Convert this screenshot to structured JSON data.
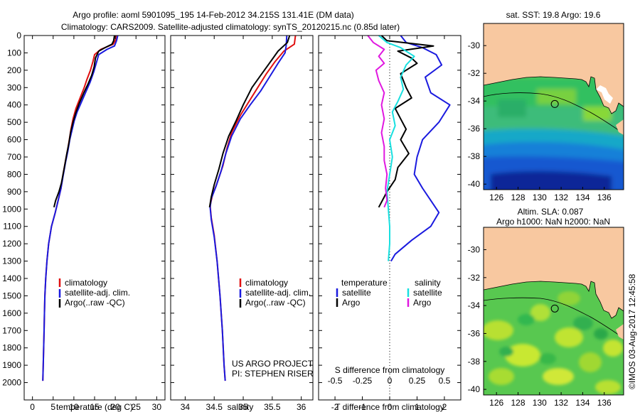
{
  "header": {
    "line1": "Argo profile: aoml 5901095_195 14-Feb-2012 34.215S 131.41E (DM data)",
    "line2": "Climatology: CARS2009. Satellite-adjusted climatology: synTS_20120215.nc (0.85d later)"
  },
  "credit": {
    "project": "US ARGO PROJECT",
    "pi": "PI: STEPHEN RISER",
    "stamp": "©IMOS 03-Aug-2017 12:45:58"
  },
  "colors": {
    "climatology": "#e01010",
    "satellite": "#1a1adf",
    "argo": "#000000",
    "sat_salinity": "#18e0e0",
    "argo_salinity": "#e018e0",
    "land": "#f8c8a0",
    "mask": "#ffffff"
  },
  "chart_data": [
    {
      "id": "temperature",
      "type": "line",
      "xlabel": "temperature (deg C)",
      "xlim": [
        -2,
        32
      ],
      "ylim": [
        2100,
        0
      ],
      "xticks": [
        0,
        5,
        10,
        15,
        20,
        25,
        30
      ],
      "yticks": [
        0,
        100,
        200,
        300,
        400,
        500,
        600,
        700,
        800,
        900,
        1000,
        1100,
        1200,
        1300,
        1400,
        1500,
        1600,
        1700,
        1800,
        1900,
        2000
      ],
      "legend": [
        "climatology",
        "satellite-adj. clim.",
        "Argo(..raw -QC)"
      ],
      "series": [
        {
          "name": "climatology",
          "color": "#e01010",
          "points": [
            [
              20.2,
              0
            ],
            [
              20,
              30
            ],
            [
              19.5,
              50
            ],
            [
              16.5,
              80
            ],
            [
              15,
              110
            ],
            [
              14.6,
              150
            ],
            [
              14,
              200
            ],
            [
              13.2,
              250
            ],
            [
              12.5,
              300
            ],
            [
              11.5,
              360
            ],
            [
              10.5,
              420
            ],
            [
              9.8,
              480
            ],
            [
              9.3,
              540
            ],
            [
              8.9,
              600
            ],
            [
              8.5,
              660
            ],
            [
              8,
              720
            ],
            [
              7.4,
              800
            ],
            [
              6.9,
              880
            ],
            [
              6.2,
              950
            ],
            [
              5.5,
              1020
            ],
            [
              4.6,
              1100
            ],
            [
              3.9,
              1200
            ],
            [
              3.5,
              1300
            ],
            [
              3.2,
              1400
            ],
            [
              3,
              1500
            ],
            [
              2.9,
              1600
            ],
            [
              2.8,
              1700
            ],
            [
              2.7,
              1800
            ],
            [
              2.6,
              1900
            ],
            [
              2.5,
              1990
            ]
          ]
        },
        {
          "name": "satellite-adj. clim.",
          "color": "#1a1adf",
          "points": [
            [
              20.6,
              0
            ],
            [
              20.3,
              30
            ],
            [
              19.8,
              60
            ],
            [
              18,
              80
            ],
            [
              16,
              110
            ],
            [
              15.4,
              160
            ],
            [
              14.8,
              210
            ],
            [
              13.9,
              270
            ],
            [
              12.8,
              330
            ],
            [
              11.7,
              390
            ],
            [
              10.8,
              440
            ],
            [
              10.1,
              490
            ],
            [
              9.5,
              550
            ],
            [
              9,
              600
            ],
            [
              8.6,
              660
            ],
            [
              8,
              730
            ],
            [
              7.4,
              810
            ],
            [
              6.9,
              880
            ],
            [
              6.2,
              950
            ],
            [
              5.5,
              1020
            ],
            [
              4.6,
              1100
            ],
            [
              3.9,
              1200
            ],
            [
              3.5,
              1300
            ],
            [
              3.2,
              1400
            ],
            [
              3,
              1500
            ],
            [
              2.9,
              1600
            ],
            [
              2.8,
              1700
            ],
            [
              2.7,
              1800
            ],
            [
              2.6,
              1900
            ],
            [
              2.5,
              1990
            ]
          ]
        },
        {
          "name": "Argo(..raw -QC)",
          "color": "#000000",
          "points": [
            [
              19.8,
              0
            ],
            [
              19.6,
              30
            ],
            [
              19.2,
              50
            ],
            [
              17.5,
              70
            ],
            [
              16,
              90
            ],
            [
              15.2,
              130
            ],
            [
              14.9,
              180
            ],
            [
              14.3,
              230
            ],
            [
              13.4,
              280
            ],
            [
              12.4,
              330
            ],
            [
              11.3,
              390
            ],
            [
              10.4,
              450
            ],
            [
              9.8,
              500
            ],
            [
              9.2,
              560
            ],
            [
              8.8,
              620
            ],
            [
              8.3,
              680
            ],
            [
              7.7,
              760
            ],
            [
              7,
              850
            ],
            [
              6.4,
              900
            ],
            [
              5.6,
              950
            ],
            [
              5.2,
              990
            ]
          ]
        }
      ]
    },
    {
      "id": "salinity",
      "type": "line",
      "xlabel": "salinity",
      "xlim": [
        33.75,
        36.2
      ],
      "ylim": [
        2100,
        0
      ],
      "xticks": [
        34,
        34.5,
        35,
        35.5,
        36
      ],
      "legend": [
        "climatology",
        "satellite-adj. clim.",
        "Argo(..raw -QC)"
      ],
      "series": [
        {
          "name": "climatology",
          "color": "#e01010",
          "points": [
            [
              35.9,
              0
            ],
            [
              35.88,
              50
            ],
            [
              35.7,
              90
            ],
            [
              35.55,
              150
            ],
            [
              35.4,
              220
            ],
            [
              35.25,
              300
            ],
            [
              35.1,
              380
            ],
            [
              34.95,
              460
            ],
            [
              34.8,
              560
            ],
            [
              34.72,
              650
            ],
            [
              34.65,
              750
            ],
            [
              34.55,
              850
            ],
            [
              34.47,
              920
            ],
            [
              34.43,
              980
            ],
            [
              34.45,
              1050
            ],
            [
              34.5,
              1150
            ],
            [
              34.55,
              1300
            ],
            [
              34.6,
              1500
            ],
            [
              34.64,
              1700
            ],
            [
              34.67,
              1900
            ],
            [
              34.69,
              1990
            ]
          ]
        },
        {
          "name": "satellite-adj. clim.",
          "color": "#1a1adf",
          "points": [
            [
              35.75,
              0
            ],
            [
              35.74,
              60
            ],
            [
              35.72,
              100
            ],
            [
              35.6,
              160
            ],
            [
              35.45,
              240
            ],
            [
              35.3,
              320
            ],
            [
              35.12,
              400
            ],
            [
              34.95,
              480
            ],
            [
              34.8,
              580
            ],
            [
              34.7,
              680
            ],
            [
              34.62,
              780
            ],
            [
              34.53,
              870
            ],
            [
              34.45,
              940
            ],
            [
              34.43,
              990
            ],
            [
              34.45,
              1060
            ],
            [
              34.5,
              1160
            ],
            [
              34.55,
              1300
            ],
            [
              34.6,
              1500
            ],
            [
              34.64,
              1700
            ],
            [
              34.67,
              1900
            ],
            [
              34.69,
              1990
            ]
          ]
        },
        {
          "name": "Argo(..raw -QC)",
          "color": "#000000",
          "points": [
            [
              35.8,
              0
            ],
            [
              35.76,
              40
            ],
            [
              35.6,
              90
            ],
            [
              35.45,
              160
            ],
            [
              35.3,
              230
            ],
            [
              35.15,
              300
            ],
            [
              35,
              400
            ],
            [
              34.88,
              490
            ],
            [
              34.75,
              580
            ],
            [
              34.65,
              680
            ],
            [
              34.58,
              770
            ],
            [
              34.5,
              860
            ],
            [
              34.45,
              930
            ],
            [
              34.42,
              990
            ]
          ]
        }
      ]
    },
    {
      "id": "difference",
      "type": "line",
      "xlabel": "T difference from climatology",
      "xlabel_top": "S difference from climatology",
      "xlim": [
        -2.6,
        2.6
      ],
      "ylim": [
        2100,
        0
      ],
      "xticks": [
        -2,
        -1,
        0,
        1,
        2
      ],
      "top_ticks": [
        "-0.5",
        "-0.25",
        "0",
        "0.25",
        "0.5"
      ],
      "legend_headers": [
        "temperature",
        "salinity"
      ],
      "legend": [
        "satellite",
        "Argo",
        "satellite",
        "Argo"
      ],
      "series": [
        {
          "name": "satellite",
          "group": "temperature",
          "color": "#1a1adf",
          "points": [
            [
              0.4,
              0
            ],
            [
              0.6,
              40
            ],
            [
              1.2,
              70
            ],
            [
              1.7,
              110
            ],
            [
              1.9,
              170
            ],
            [
              1.3,
              240
            ],
            [
              1.5,
              330
            ],
            [
              2.2,
              400
            ],
            [
              1.8,
              500
            ],
            [
              1.2,
              600
            ],
            [
              1.0,
              700
            ],
            [
              0.9,
              800
            ],
            [
              1.2,
              880
            ],
            [
              1.5,
              950
            ],
            [
              1.8,
              1020
            ],
            [
              1.5,
              1100
            ],
            [
              0.8,
              1180
            ],
            [
              0.2,
              1260
            ],
            [
              0.05,
              1300
            ]
          ]
        },
        {
          "name": "Argo",
          "group": "temperature",
          "color": "#000000",
          "points": [
            [
              -0.3,
              0
            ],
            [
              -0.1,
              30
            ],
            [
              1.6,
              60
            ],
            [
              0.3,
              90
            ],
            [
              0.8,
              130
            ],
            [
              1.0,
              160
            ],
            [
              0.4,
              220
            ],
            [
              0.6,
              300
            ],
            [
              0.8,
              360
            ],
            [
              0.2,
              420
            ],
            [
              0.4,
              480
            ],
            [
              0.6,
              540
            ],
            [
              0.4,
              600
            ],
            [
              0.7,
              680
            ],
            [
              0.3,
              760
            ],
            [
              0.2,
              830
            ],
            [
              -0.1,
              900
            ],
            [
              -0.3,
              960
            ],
            [
              -0.4,
              990
            ]
          ]
        },
        {
          "name": "satellite",
          "group": "salinity",
          "color": "#18e0e0",
          "points": [
            [
              -0.4,
              0
            ],
            [
              -0.1,
              40
            ],
            [
              0.4,
              70
            ],
            [
              0.9,
              120
            ],
            [
              0.6,
              170
            ],
            [
              0.4,
              240
            ],
            [
              0.5,
              310
            ],
            [
              0.3,
              380
            ],
            [
              0.1,
              440
            ],
            [
              0.2,
              520
            ],
            [
              0.0,
              600
            ],
            [
              0.1,
              700
            ],
            [
              0.0,
              800
            ],
            [
              -0.1,
              900
            ],
            [
              -0.05,
              1000
            ],
            [
              0.0,
              1100
            ],
            [
              0.0,
              1200
            ],
            [
              -0.05,
              1300
            ]
          ]
        },
        {
          "name": "Argo",
          "group": "salinity",
          "color": "#e018e0",
          "points": [
            [
              -0.8,
              0
            ],
            [
              -0.6,
              40
            ],
            [
              -0.2,
              80
            ],
            [
              -0.4,
              120
            ],
            [
              -0.2,
              160
            ],
            [
              -0.5,
              200
            ],
            [
              -0.4,
              260
            ],
            [
              -0.2,
              330
            ],
            [
              -0.3,
              400
            ],
            [
              -0.2,
              480
            ],
            [
              -0.3,
              560
            ],
            [
              -0.2,
              640
            ],
            [
              -0.2,
              720
            ],
            [
              -0.1,
              800
            ],
            [
              -0.15,
              880
            ],
            [
              -0.1,
              950
            ],
            [
              -0.2,
              990
            ]
          ]
        }
      ]
    },
    {
      "id": "sst-map",
      "type": "heatmap",
      "title": "sat. SST: 19.8 Argo: 19.6",
      "xlim": [
        124.8,
        137.8
      ],
      "ylim": [
        -40.4,
        -28.4
      ],
      "xticks": [
        126,
        128,
        130,
        132,
        134,
        136
      ],
      "yticks": [
        -30,
        -32,
        -34,
        -36,
        -38,
        -40
      ],
      "profile_location": [
        131.41,
        -34.215
      ]
    },
    {
      "id": "sla-map",
      "type": "heatmap",
      "title": "Altim. SLA: 0.087",
      "subtitle": "Argo h1000: NaN h2000: NaN",
      "xlim": [
        124.8,
        137.8
      ],
      "ylim": [
        -40.4,
        -28.4
      ],
      "xticks": [
        126,
        128,
        130,
        132,
        134,
        136
      ],
      "yticks": [
        -30,
        -32,
        -34,
        -36,
        -38,
        -40
      ],
      "profile_location": [
        131.41,
        -34.215
      ]
    }
  ]
}
